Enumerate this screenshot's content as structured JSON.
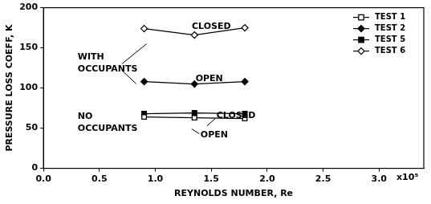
{
  "chart_data": {
    "type": "line",
    "x_label": "REYNOLDS NUMBER, Re",
    "y_label": "PRESSURE LOSS COEFF, K",
    "x": [
      0.9,
      1.35,
      1.8
    ],
    "series": [
      {
        "name": "TEST 1",
        "color": "#000000",
        "marker": "square-open",
        "values": [
          64,
          63,
          62
        ]
      },
      {
        "name": "TEST 2",
        "color": "#000000",
        "marker": "diamond",
        "values": [
          108,
          105,
          108
        ]
      },
      {
        "name": "TEST 5",
        "color": "#000000",
        "marker": "square",
        "values": [
          68,
          69,
          68
        ]
      },
      {
        "name": "TEST 6",
        "color": "#000000",
        "marker": "diamond-open",
        "values": [
          174,
          166,
          175
        ]
      }
    ],
    "xlim": [
      0,
      3.4
    ],
    "xticks": [
      {
        "value": 0,
        "label": "0.0"
      },
      0.5,
      {
        "value": 1,
        "label": "1.0"
      },
      1.5,
      {
        "value": 2,
        "label": "2.0"
      },
      2.5,
      {
        "value": 3,
        "label": "3.0"
      }
    ],
    "ylim": [
      0,
      200
    ],
    "yticks": [
      0,
      50,
      100,
      150,
      200
    ],
    "annotations": [
      "x10⁵",
      "WITH OCCUPANTS",
      "NO OCCUPANTS",
      "CLOSED",
      "OPEN",
      "CLOSED",
      "OPEN"
    ],
    "grid": false,
    "legend": "upper right"
  }
}
